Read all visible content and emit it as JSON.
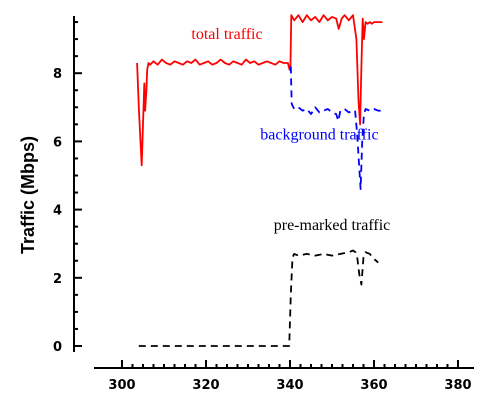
{
  "chart_data": {
    "type": "line",
    "title": "",
    "xlabel": "",
    "ylabel": "Traffic (Mbps)",
    "xlim": [
      300,
      380
    ],
    "ylim": [
      0,
      10
    ],
    "x_ticks": [
      300,
      320,
      340,
      360,
      380
    ],
    "y_ticks": [
      0,
      2,
      4,
      6,
      8
    ],
    "grid": false,
    "legend": "none",
    "annotations": [
      {
        "text": "total traffic",
        "x": 325,
        "y": 9.0,
        "color": "#ff0000"
      },
      {
        "text": "background traffic",
        "x": 347,
        "y": 6.05,
        "color": "#0000ff"
      },
      {
        "text": "pre-marked traffic",
        "x": 350,
        "y": 3.4,
        "color": "#000000"
      }
    ],
    "series": [
      {
        "name": "total traffic",
        "color": "#ff0000",
        "style": "solid",
        "x": [
          303.6,
          304.0,
          304.4,
          304.7,
          305.0,
          305.3,
          305.5,
          305.8,
          306.0,
          306.3,
          306.7,
          307.5,
          308.5,
          309.5,
          310.5,
          311.5,
          312.5,
          313.5,
          314.5,
          315.5,
          316.5,
          317.5,
          318.5,
          319.5,
          320.5,
          321.5,
          322.5,
          323.5,
          324.5,
          325.5,
          326.5,
          327.5,
          328.5,
          329.5,
          330.5,
          331.5,
          332.5,
          333.5,
          334.5,
          335.5,
          336.5,
          337.5,
          338.5,
          339.5,
          339.9,
          340.1,
          340.3,
          341.0,
          342.0,
          343.0,
          344.0,
          345.0,
          346.0,
          347.0,
          348.0,
          349.0,
          350.0,
          351.0,
          351.6,
          352.3,
          353.0,
          354.0,
          355.0,
          355.8,
          356.3,
          356.7,
          357.0,
          357.3,
          357.6,
          358.0,
          358.5,
          359.0,
          359.5,
          360.0,
          361.0,
          362.0
        ],
        "y": [
          8.3,
          7.0,
          6.0,
          5.3,
          6.5,
          7.7,
          6.9,
          7.5,
          8.1,
          8.3,
          8.25,
          8.35,
          8.25,
          8.4,
          8.3,
          8.25,
          8.35,
          8.3,
          8.25,
          8.35,
          8.3,
          8.4,
          8.25,
          8.3,
          8.35,
          8.25,
          8.3,
          8.4,
          8.3,
          8.25,
          8.35,
          8.3,
          8.25,
          8.4,
          8.3,
          8.35,
          8.25,
          8.3,
          8.35,
          8.3,
          8.25,
          8.35,
          8.3,
          8.3,
          8.1,
          8.1,
          9.7,
          9.55,
          9.7,
          9.5,
          9.7,
          9.55,
          9.65,
          9.5,
          9.7,
          9.55,
          9.65,
          9.6,
          9.3,
          9.6,
          9.7,
          9.55,
          9.7,
          9.0,
          7.2,
          6.5,
          8.2,
          9.6,
          9.0,
          9.5,
          9.45,
          9.5,
          9.45,
          9.5,
          9.5,
          9.5
        ]
      },
      {
        "name": "background traffic",
        "color": "#0000ff",
        "style": "dashed",
        "x": [
          340.2,
          340.4,
          341.0,
          342.0,
          343.0,
          344.0,
          345.0,
          346.0,
          347.0,
          348.0,
          349.0,
          350.0,
          351.0,
          351.5,
          352.0,
          353.0,
          354.0,
          355.0,
          355.5,
          356.0,
          356.4,
          356.8,
          357.2,
          357.6,
          358.0,
          359.0,
          360.0,
          361.0,
          362.0
        ],
        "y": [
          8.2,
          7.1,
          6.95,
          7.0,
          6.9,
          6.95,
          6.8,
          7.0,
          6.85,
          6.9,
          6.95,
          6.85,
          6.8,
          6.6,
          6.9,
          6.95,
          6.85,
          6.9,
          6.9,
          6.2,
          5.4,
          4.6,
          6.0,
          6.8,
          6.95,
          6.9,
          6.95,
          6.9,
          6.9
        ]
      },
      {
        "name": "pre-marked traffic",
        "color": "#000000",
        "style": "dashed",
        "x": [
          304.0,
          310.0,
          320.0,
          330.0,
          339.8,
          340.2,
          340.6,
          341.0,
          342.0,
          344.0,
          346.0,
          348.0,
          350.0,
          352.0,
          354.0,
          355.0,
          355.6,
          356.0,
          356.5,
          357.0,
          357.5,
          358.0,
          359.0,
          360.0,
          361.0
        ],
        "y": [
          0.0,
          0.0,
          0.0,
          0.0,
          0.0,
          1.5,
          2.6,
          2.7,
          2.65,
          2.7,
          2.65,
          2.7,
          2.65,
          2.7,
          2.75,
          2.8,
          2.75,
          2.6,
          2.1,
          1.8,
          2.6,
          2.75,
          2.7,
          2.55,
          2.45
        ]
      }
    ]
  }
}
